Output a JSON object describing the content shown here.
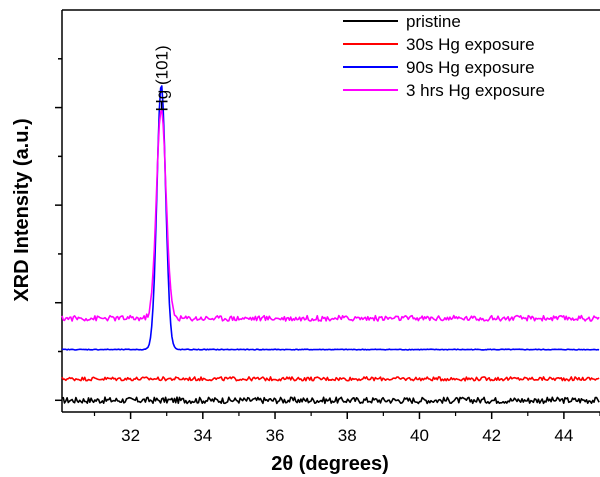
{
  "chart_data": {
    "type": "line",
    "xlabel": "2θ (degrees)",
    "ylabel": "XRD Intensity (a.u.)",
    "xlim": [
      30.1,
      45
    ],
    "ylim": [
      -0.3,
      10.0
    ],
    "x_ticks": [
      32,
      34,
      36,
      38,
      40,
      42,
      44
    ],
    "y_ticks_labeled": false,
    "grid": false,
    "legend_position": "top-right",
    "series": [
      {
        "name": "pristine",
        "color": "#000000",
        "baseline": 0.0,
        "noise": 0.08,
        "peak_height": 0
      },
      {
        "name": "30s Hg exposure",
        "color": "#ff0000",
        "baseline": 0.55,
        "noise": 0.05,
        "peak_height": 0
      },
      {
        "name": "90s Hg exposure",
        "color": "#0000ff",
        "baseline": 1.3,
        "noise": 0.01,
        "peak_center": 32.85,
        "peak_height": 6.8,
        "peak_width": 0.12
      },
      {
        "name": "3 hrs Hg exposure",
        "color": "#ff00ff",
        "baseline": 2.1,
        "noise": 0.07,
        "peak_center": 32.85,
        "peak_height": 5.4,
        "peak_width": 0.13
      }
    ],
    "annotations": [
      {
        "text": "Hg (101)",
        "x": 32.85,
        "y": 7.4,
        "rotation": -90
      }
    ]
  }
}
